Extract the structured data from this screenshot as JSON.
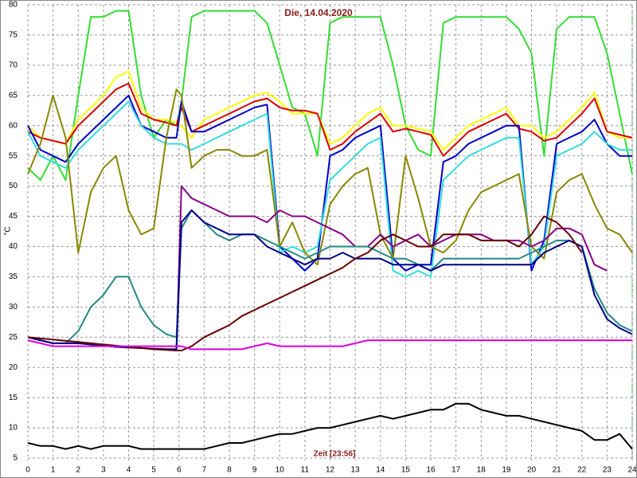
{
  "chart_data": {
    "type": "line",
    "title": "Die, 14.04.2020",
    "y_label": "°C",
    "x_label": "Zeit [23:56]",
    "xlim": [
      0,
      24
    ],
    "xticks": [
      0,
      1,
      2,
      3,
      4,
      5,
      6,
      7,
      8,
      9,
      10,
      11,
      12,
      13,
      14,
      15,
      16,
      17,
      18,
      19,
      20,
      21,
      22,
      23,
      24
    ],
    "ylim": [
      5,
      80
    ],
    "yticks": [
      5,
      10,
      15,
      20,
      25,
      30,
      35,
      40,
      45,
      50,
      55,
      60,
      65,
      70,
      75,
      80
    ],
    "grid": true,
    "x": [
      0,
      0.5,
      1,
      1.5,
      2,
      2.5,
      3,
      3.5,
      4,
      4.5,
      5,
      5.5,
      5.9,
      6.1,
      6.5,
      7,
      7.5,
      8,
      8.5,
      9,
      9.5,
      10,
      10.5,
      11,
      11.5,
      12,
      12.5,
      13,
      13.5,
      14,
      14.5,
      15,
      15.5,
      16,
      16.5,
      17,
      17.5,
      18,
      18.5,
      19,
      19.5,
      20,
      20.5,
      21,
      21.5,
      22,
      22.5,
      23,
      23.5,
      24
    ],
    "series": [
      {
        "color": "#33dd33",
        "values": [
          53,
          51,
          55,
          51,
          65,
          78,
          78,
          79,
          79,
          65,
          58,
          61,
          60,
          64,
          78,
          79,
          79,
          79,
          79,
          79,
          77,
          70,
          63,
          62,
          55,
          77,
          78,
          78,
          78,
          78,
          70,
          60,
          56,
          55,
          77,
          78,
          78,
          78,
          78,
          78,
          76,
          72,
          55,
          76,
          78,
          78,
          78,
          72,
          62,
          52
        ]
      },
      {
        "color": "#ffff00",
        "values": [
          60,
          58,
          57.5,
          57,
          61,
          63,
          65,
          68,
          69,
          63,
          61,
          61,
          60.5,
          60,
          58,
          61,
          62,
          63,
          64,
          65,
          65.5,
          64,
          62,
          62,
          62,
          57,
          58,
          60,
          62,
          63,
          60,
          60,
          59.5,
          59,
          56,
          58,
          60,
          61,
          62,
          63,
          60,
          60,
          58,
          59,
          61,
          63,
          65.5,
          59,
          58,
          58
        ]
      },
      {
        "color": "#dd0000",
        "values": [
          59,
          58,
          57.5,
          57,
          60,
          62,
          64,
          66,
          67,
          62,
          61,
          60.5,
          60,
          63,
          59,
          60,
          61,
          62,
          63,
          64,
          64.5,
          63,
          62.5,
          62.5,
          62,
          56,
          57,
          59,
          60.5,
          62,
          59,
          59.5,
          59,
          58.5,
          55,
          57,
          59,
          60,
          61,
          62,
          59.5,
          59,
          57.5,
          58,
          60,
          62,
          64.5,
          59,
          58.5,
          58
        ]
      },
      {
        "color": "#0000cc",
        "values": [
          60,
          56,
          55,
          54,
          57,
          59,
          61,
          63,
          65,
          60,
          59,
          58,
          58,
          64,
          59,
          59,
          60,
          61,
          62,
          63,
          63.5,
          40,
          38,
          36,
          38,
          55,
          56,
          58,
          59,
          60,
          38,
          36,
          37,
          37,
          54,
          55,
          57,
          58,
          59,
          60,
          60,
          36,
          41,
          57,
          58,
          59,
          61,
          57,
          55,
          55
        ]
      },
      {
        "color": "#33dddd",
        "values": [
          59,
          55,
          54,
          53,
          56,
          58,
          60,
          62,
          64,
          60,
          58,
          57,
          57,
          57,
          56,
          57,
          58,
          59,
          60,
          61,
          62,
          39,
          40,
          39,
          40,
          51,
          53,
          55,
          57,
          58,
          36,
          35,
          36,
          35,
          51,
          53,
          55,
          56,
          57,
          58,
          58,
          37,
          40,
          55,
          56,
          57,
          59,
          57,
          56,
          56
        ]
      },
      {
        "color": "#888800",
        "values": [
          52,
          57,
          65,
          58,
          39,
          49,
          53,
          55,
          46,
          42,
          43,
          58,
          66,
          65,
          53,
          55,
          56,
          56,
          55,
          55,
          56,
          40,
          44,
          39,
          37,
          47,
          50,
          52,
          53,
          42,
          38,
          55,
          48,
          40,
          39,
          41,
          46,
          49,
          50,
          51,
          52,
          40,
          38,
          49,
          51,
          52,
          47,
          43,
          42,
          39
        ]
      },
      {
        "color": "#880088",
        "values": [
          25,
          24.5,
          24,
          24,
          24,
          23.8,
          23.6,
          23.4,
          23.3,
          23.2,
          23.1,
          23,
          23,
          50,
          48,
          47,
          46,
          45,
          45,
          45,
          44,
          46,
          45,
          45,
          44,
          43,
          42,
          40,
          40,
          42,
          40,
          41,
          42,
          40,
          41,
          42,
          42,
          42,
          41,
          41,
          41,
          40,
          41,
          43,
          43,
          42,
          37,
          36,
          null,
          null
        ]
      },
      {
        "color": "#228888",
        "values": [
          25,
          24.5,
          24,
          24,
          26,
          30,
          32,
          35,
          35,
          30,
          27,
          25.5,
          25,
          43,
          46,
          44,
          42,
          41,
          42,
          42,
          41,
          40,
          39,
          38,
          39,
          40,
          40,
          40,
          40,
          39,
          38,
          38,
          37,
          36,
          38,
          38,
          38,
          38,
          38,
          38,
          38,
          39,
          40,
          41,
          41,
          40,
          33,
          29,
          27,
          26
        ]
      },
      {
        "color": "#000088",
        "values": [
          25,
          24.5,
          24,
          24,
          24,
          23.8,
          23.6,
          23.4,
          23.3,
          23.2,
          23.1,
          23,
          23,
          44,
          46,
          44,
          43,
          42,
          42,
          42,
          40,
          39,
          38,
          37,
          38,
          38,
          39,
          38,
          38,
          38,
          37,
          37,
          37,
          36,
          37,
          37,
          37,
          37,
          37,
          37,
          37,
          37,
          39,
          40,
          41,
          40,
          32,
          28,
          26.5,
          25.5
        ]
      },
      {
        "color": "#660000",
        "values": [
          25,
          24.8,
          24.6,
          24.4,
          24.2,
          24,
          23.8,
          23.6,
          23.4,
          23.2,
          23,
          22.9,
          22.8,
          22.8,
          23.5,
          25,
          26,
          27,
          28.5,
          29.5,
          30.5,
          31.5,
          32.5,
          33.5,
          34.5,
          35.5,
          36.5,
          38,
          39,
          41,
          42,
          41,
          40,
          40,
          42,
          42,
          42,
          41,
          41,
          41,
          40,
          42,
          45,
          44,
          42,
          39,
          null,
          null,
          null,
          null
        ]
      },
      {
        "color": "#dd00dd",
        "values": [
          24.5,
          24,
          23.5,
          23.5,
          23.5,
          23.5,
          23.5,
          23.5,
          23.5,
          23.5,
          23.5,
          23.5,
          23.5,
          23.5,
          23,
          23,
          23,
          23,
          23,
          23.5,
          24,
          23.5,
          23.5,
          23.5,
          23.5,
          23.5,
          23.5,
          24,
          24.5,
          24.5,
          24.5,
          24.5,
          24.5,
          24.5,
          24.5,
          24.5,
          24.5,
          24.5,
          24.5,
          24.5,
          24.5,
          24.5,
          24.5,
          24.5,
          24.5,
          24.5,
          24.5,
          24.5,
          24.5,
          24.5
        ]
      },
      {
        "color": "#000000",
        "values": [
          7.5,
          7,
          7,
          6.5,
          7,
          6.5,
          7,
          7,
          7,
          6.5,
          6.5,
          6.5,
          6.5,
          6.5,
          6.5,
          6.5,
          7,
          7.5,
          7.5,
          8,
          8.5,
          9,
          9,
          9.5,
          10,
          10,
          10.5,
          11,
          11.5,
          12,
          11.5,
          12,
          12.5,
          13,
          13,
          14,
          14,
          13,
          12.5,
          12,
          12,
          11.5,
          11,
          10.5,
          10,
          9.5,
          8,
          8,
          9,
          6.5
        ]
      }
    ]
  }
}
